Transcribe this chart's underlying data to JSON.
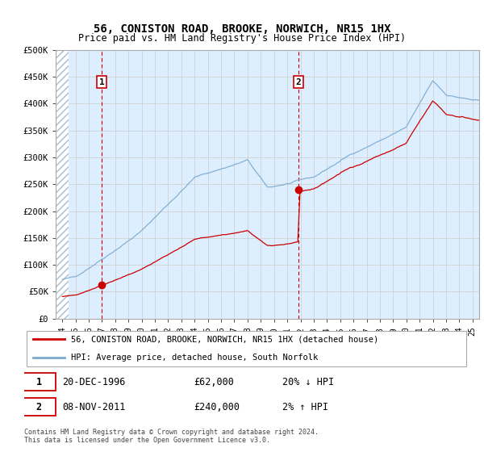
{
  "title": "56, CONISTON ROAD, BROOKE, NORWICH, NR15 1HX",
  "subtitle": "Price paid vs. HM Land Registry's House Price Index (HPI)",
  "ylim": [
    0,
    500000
  ],
  "yticks": [
    0,
    50000,
    100000,
    150000,
    200000,
    250000,
    300000,
    350000,
    400000,
    450000,
    500000
  ],
  "ytick_labels": [
    "£0",
    "£50K",
    "£100K",
    "£150K",
    "£200K",
    "£250K",
    "£300K",
    "£350K",
    "£400K",
    "£450K",
    "£500K"
  ],
  "xlim_start": 1993.5,
  "xlim_end": 2025.5,
  "xticks": [
    1994,
    1995,
    1996,
    1997,
    1998,
    1999,
    2000,
    2001,
    2002,
    2003,
    2004,
    2005,
    2006,
    2007,
    2008,
    2009,
    2010,
    2011,
    2012,
    2013,
    2014,
    2015,
    2016,
    2017,
    2018,
    2019,
    2020,
    2021,
    2022,
    2023,
    2024,
    2025
  ],
  "sale1_year": 1996.97,
  "sale1_price": 62000,
  "sale2_year": 2011.85,
  "sale2_price": 240000,
  "line_property_color": "#cc0000",
  "line_hpi_color": "#7aaad0",
  "bg_color": "#ddeeff",
  "bg_color_white": "#ffffff",
  "grid_color": "#cccccc",
  "legend_label_property": "56, CONISTON ROAD, BROOKE, NORWICH, NR15 1HX (detached house)",
  "legend_label_hpi": "HPI: Average price, detached house, South Norfolk",
  "sale1_date": "20-DEC-1996",
  "sale1_amount": "£62,000",
  "sale1_hpi_text": "20% ↓ HPI",
  "sale2_date": "08-NOV-2011",
  "sale2_amount": "£240,000",
  "sale2_hpi_text": "2% ↑ HPI",
  "footer": "Contains HM Land Registry data © Crown copyright and database right 2024.\nThis data is licensed under the Open Government Licence v3.0."
}
